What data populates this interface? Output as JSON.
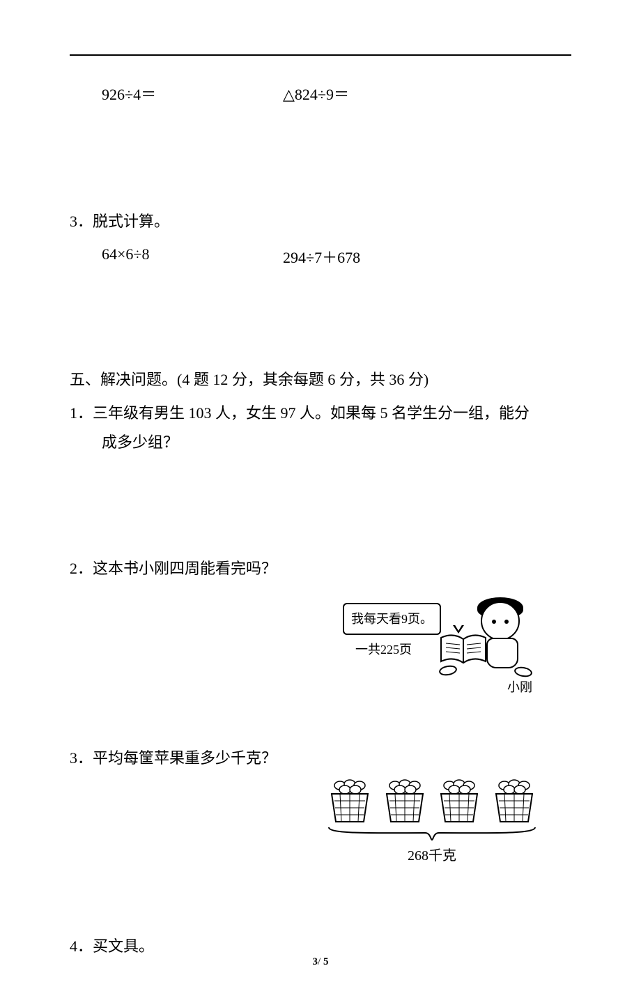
{
  "top_row": {
    "left": "926÷4＝",
    "right": "△824÷9＝"
  },
  "q3": {
    "title": "3．脱式计算。",
    "left": "64×6÷8",
    "right": "294÷7＋678"
  },
  "section5": {
    "title": "五、解决问题。(4 题 12 分，其余每题 6 分，共 36 分)",
    "q1_line1": "1．三年级有男生 103 人，女生 97 人。如果每 5 名学生分一组，能分",
    "q1_line2": "成多少组？",
    "q2": "2．这本书小刚四周能看完吗？",
    "q2_illus": {
      "speech": "我每天看9页。",
      "pages": "一共225页",
      "name": "小刚"
    },
    "q3": "3．平均每筐苹果重多少千克？",
    "q3_illus": {
      "basket_count": 4,
      "label": "268千克"
    },
    "q4": "4．买文具。"
  },
  "footer": {
    "current": "3",
    "sep": "/",
    "total": "5"
  },
  "colors": {
    "text": "#000000",
    "bg": "#ffffff"
  }
}
